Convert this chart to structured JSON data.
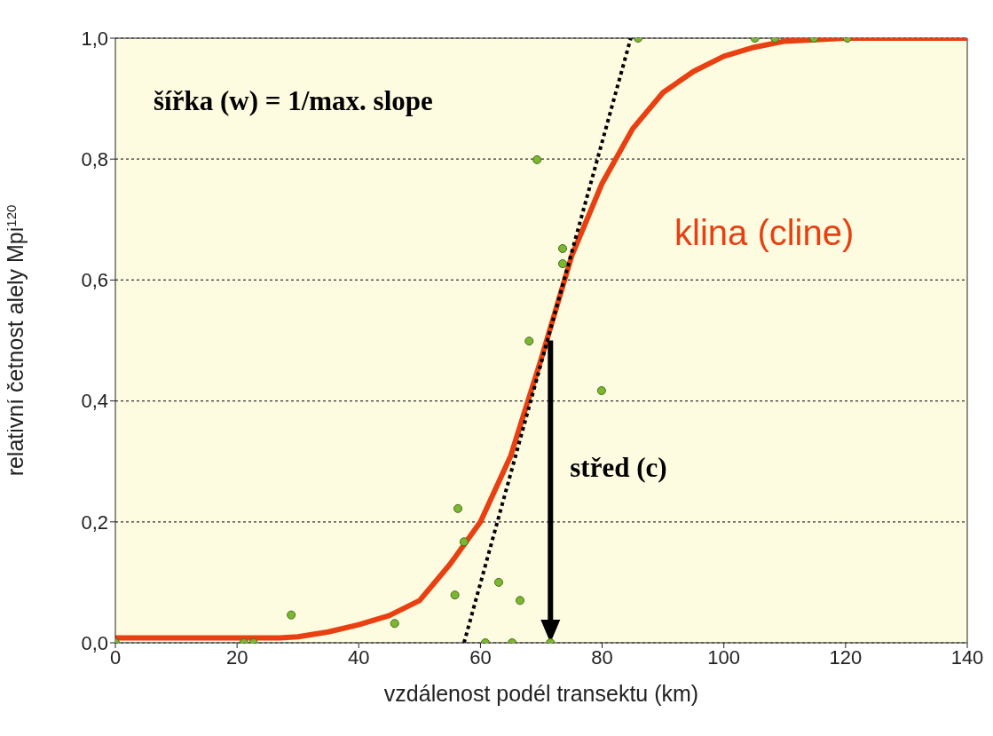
{
  "chart_data": {
    "type": "scatter",
    "xlabel": "vzdálenost podél transektu (km)",
    "ylabel": "relativní četnost alely Mpi$^{120}$",
    "annotations": [
      "šířka (w) = 1/max. slope"
    ],
    "ref_lines": [
      {
        "axis": "x",
        "value": 71.5,
        "label": "střed (c)",
        "color": "#000000"
      }
    ],
    "series": [
      {
        "color": "#7ab830",
        "marker": "circle",
        "x": [
          0,
          21.1,
          22.7,
          28.9,
          45.9,
          55.8,
          56.3,
          57.3,
          60.8,
          63.0,
          65.2,
          66.5,
          68.0,
          69.3,
          71.5,
          73.5,
          73.5,
          79.9,
          85.9,
          105.1,
          108.4,
          114.8,
          120.3
        ],
        "values": [
          0,
          0,
          0,
          0.046,
          0.032,
          0.079,
          0.222,
          0.167,
          0,
          0.1,
          0,
          0.07,
          0.499,
          0.799,
          0,
          0.652,
          0.627,
          0.417,
          1,
          1,
          1,
          1,
          1
        ]
      },
      {
        "type": "line",
        "name": "klina (cline)",
        "color": "#e84010",
        "marker": "none",
        "line_style": "solid",
        "x": [
          0,
          20,
          27,
          30,
          35,
          40,
          45,
          50,
          55,
          60,
          65,
          70,
          75,
          80,
          85,
          90,
          95,
          100,
          105,
          110,
          120,
          140
        ],
        "values": [
          0.008,
          0.008,
          0.008,
          0.01,
          0.018,
          0.03,
          0.045,
          0.07,
          0.13,
          0.2,
          0.31,
          0.47,
          0.64,
          0.76,
          0.85,
          0.91,
          0.945,
          0.97,
          0.985,
          0.995,
          1,
          1
        ]
      },
      {
        "type": "line",
        "color": "#000000",
        "marker": "none",
        "line_style": "dotted",
        "x": [
          57.3,
          84.7
        ],
        "values": [
          0,
          1
        ]
      }
    ],
    "xlim": [
      0,
      140
    ],
    "xticks": [
      0,
      20,
      40,
      60,
      80,
      100,
      120,
      140
    ],
    "ylim": [
      0,
      1
    ],
    "yticks": [
      {
        "value": 0,
        "label": "0,0"
      },
      {
        "value": 0.2,
        "label": "0,2"
      },
      {
        "value": 0.4,
        "label": "0,4"
      },
      {
        "value": 0.6,
        "label": "0,6"
      },
      {
        "value": 0.8,
        "label": "0,8"
      },
      {
        "value": 1,
        "label": "1,0"
      }
    ],
    "grid": "y",
    "legend": false
  }
}
